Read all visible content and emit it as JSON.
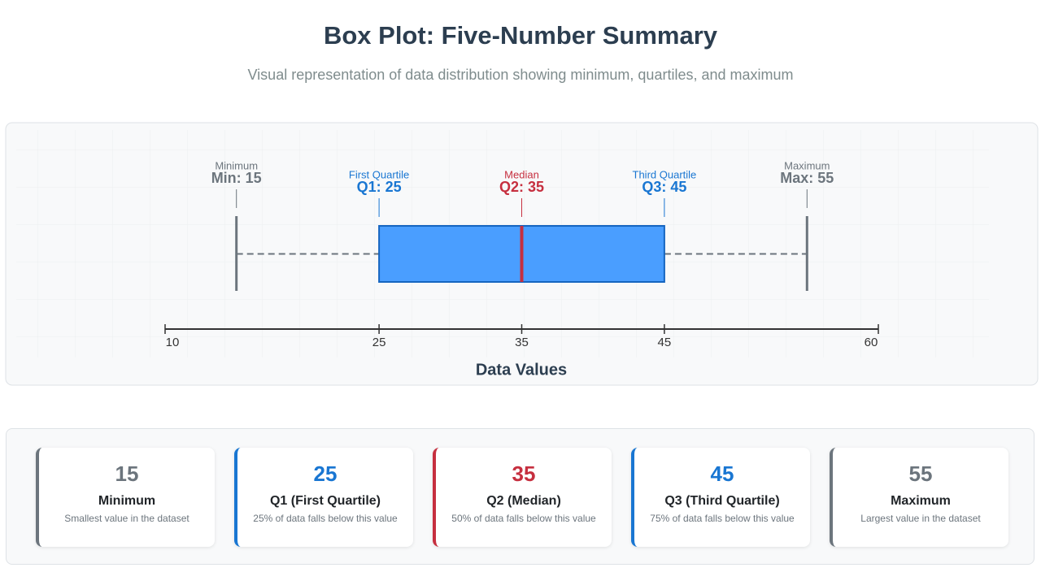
{
  "chart_data": {
    "type": "box",
    "title": "Box Plot: Five-Number Summary",
    "subtitle": "Visual representation of data distribution showing minimum, quartiles, and maximum",
    "xlabel": "Data Values",
    "xlim": [
      10,
      60
    ],
    "xticks": [
      10,
      25,
      35,
      45,
      60
    ],
    "box": {
      "labels": [
        "Minimum",
        "First Quartile",
        "Median",
        "Third Quartile",
        "Maximum"
      ],
      "values": [
        15,
        25,
        35,
        45,
        55
      ],
      "value_labels": [
        "Min: 15",
        "Q1: 25",
        "Q2: 35",
        "Q3: 45",
        "Max: 55"
      ],
      "colors": [
        "#6c757d",
        "#1976d2",
        "#c62f3f",
        "#1976d2",
        "#6c757d"
      ],
      "fill": "#4a9eff"
    }
  },
  "cards": [
    {
      "value": "15",
      "title": "Minimum",
      "description": "Smallest value in the dataset"
    },
    {
      "value": "25",
      "title": "Q1 (First Quartile)",
      "description": "25% of data falls below this value"
    },
    {
      "value": "35",
      "title": "Q2 (Median)",
      "description": "50% of data falls below this value"
    },
    {
      "value": "45",
      "title": "Q3 (Third Quartile)",
      "description": "75% of data falls below this value"
    },
    {
      "value": "55",
      "title": "Maximum",
      "description": "Largest value in the dataset"
    }
  ]
}
